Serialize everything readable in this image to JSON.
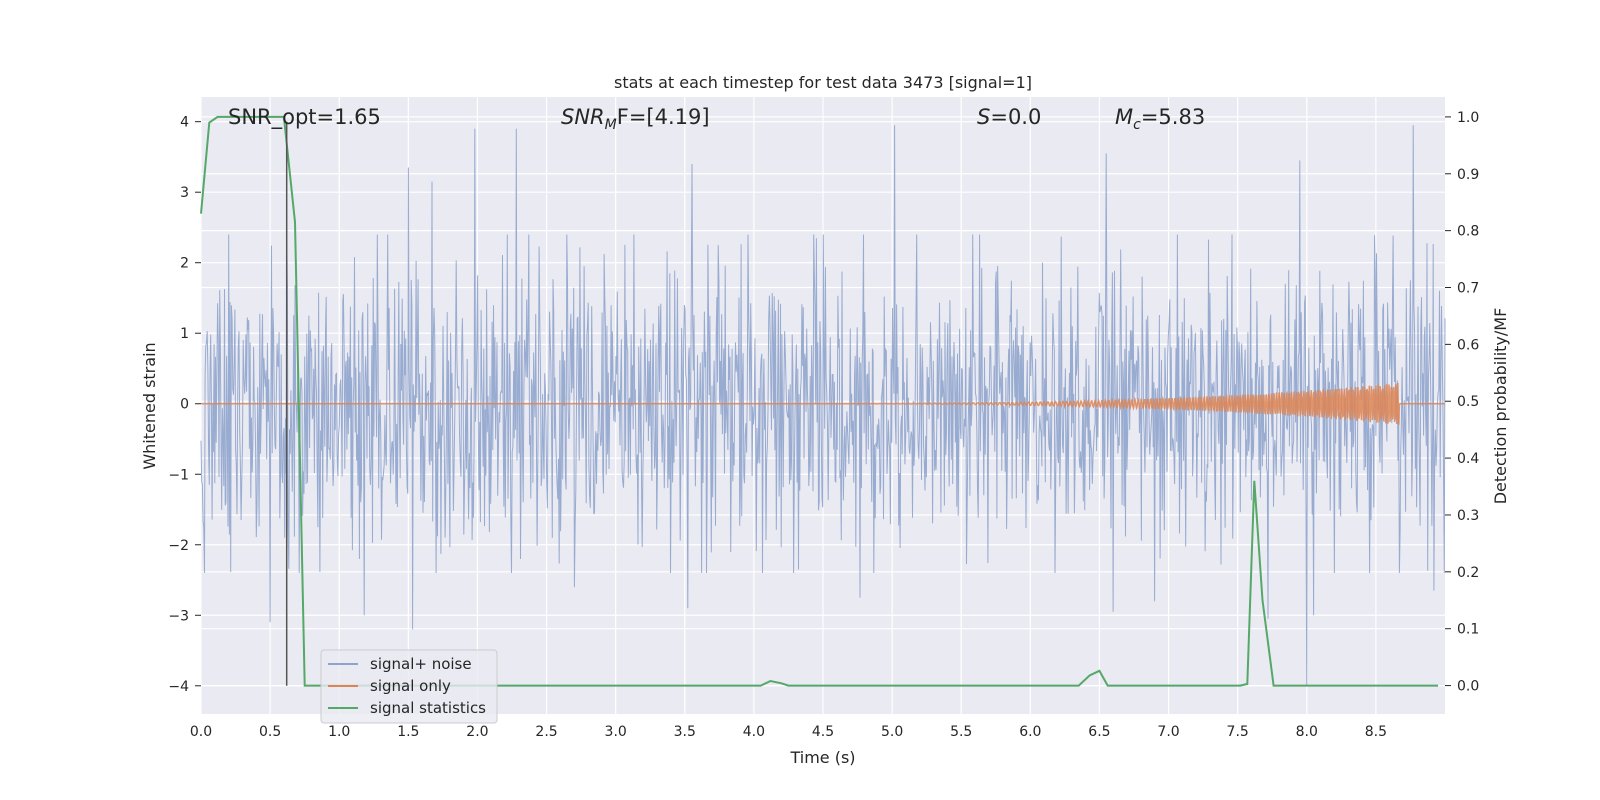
{
  "chart_data": {
    "type": "line",
    "title": "stats at each timestep for test data 3473 [signal=1]",
    "xlabel": "Time (s)",
    "ylabel": "Whitened strain",
    "y2label": "Detection probability/MF",
    "xlim": [
      0.0,
      9.0
    ],
    "ylim": [
      -4.4,
      4.35
    ],
    "y2lim": [
      -0.05,
      1.035
    ],
    "x_ticks": [
      "0.0",
      "0.5",
      "1.0",
      "1.5",
      "2.0",
      "2.5",
      "3.0",
      "3.5",
      "4.0",
      "4.5",
      "5.0",
      "5.5",
      "6.0",
      "6.5",
      "7.0",
      "7.5",
      "8.0",
      "8.5"
    ],
    "y_ticks": [
      "−4",
      "−3",
      "−2",
      "−1",
      "0",
      "1",
      "2",
      "3",
      "4"
    ],
    "y2_ticks": [
      "0.0",
      "0.1",
      "0.2",
      "0.3",
      "0.4",
      "0.5",
      "0.6",
      "0.7",
      "0.8",
      "0.9",
      "1.0"
    ],
    "grid": true,
    "legend_position": "lower-left",
    "annotations": [
      {
        "text": "SNR_opt=1.65"
      },
      {
        "base": "SNR",
        "sub": "M",
        "rest": "F=[4.19]"
      },
      {
        "base": "S",
        "rest": "=0.0"
      },
      {
        "base": "M",
        "sub": "c",
        "rest": "=5.83"
      }
    ],
    "series": [
      {
        "name": "signal+ noise",
        "color": "#8fa4cc",
        "axis": "left",
        "sigma": 1.0,
        "peaks": [
          {
            "x": 0.62,
            "y": 2.45
          },
          {
            "x": 1.5,
            "y": 3.35
          },
          {
            "x": 1.67,
            "y": 3.15
          },
          {
            "x": 1.98,
            "y": 3.9
          },
          {
            "x": 2.28,
            "y": 3.9
          },
          {
            "x": 3.55,
            "y": 3.4
          },
          {
            "x": 5.02,
            "y": 3.95
          },
          {
            "x": 6.55,
            "y": 3.55
          },
          {
            "x": 7.95,
            "y": 3.45
          },
          {
            "x": 8.77,
            "y": 3.95
          },
          {
            "x": 0.5,
            "y": -3.1
          },
          {
            "x": 1.53,
            "y": -3.2
          },
          {
            "x": 1.18,
            "y": -3.0
          },
          {
            "x": 2.7,
            "y": -2.6
          },
          {
            "x": 3.52,
            "y": -2.9
          },
          {
            "x": 4.77,
            "y": -2.75
          },
          {
            "x": 6.6,
            "y": -2.95
          },
          {
            "x": 6.9,
            "y": -2.8
          },
          {
            "x": 7.72,
            "y": -3.05
          },
          {
            "x": 8.0,
            "y": -4.0
          },
          {
            "x": 8.05,
            "y": -3.0
          },
          {
            "x": 8.92,
            "y": -2.65
          }
        ]
      },
      {
        "name": "signal only",
        "color": "#dd8452",
        "axis": "left",
        "chirp_start": 4.0,
        "chirp_end": 8.67,
        "peak_amplitude": 0.3
      },
      {
        "name": "signal statistics",
        "color": "#55a868",
        "axis": "right",
        "x": [
          0.0,
          0.06,
          0.12,
          0.6,
          0.68,
          0.75,
          4.05,
          4.12,
          4.2,
          4.25,
          6.35,
          6.43,
          6.5,
          6.56,
          7.52,
          7.57,
          7.62,
          7.68,
          7.76,
          8.95
        ],
        "y": [
          0.83,
          0.99,
          1.0,
          1.0,
          0.815,
          0.0,
          0.0,
          0.008,
          0.004,
          0.0,
          0.0,
          0.018,
          0.026,
          0.0,
          0.0,
          0.003,
          0.36,
          0.15,
          0.0,
          0.0
        ]
      }
    ],
    "vertical_marker": {
      "x": 0.62,
      "y_from": -4.0,
      "y_to": 4.0,
      "color": "#555555"
    }
  }
}
